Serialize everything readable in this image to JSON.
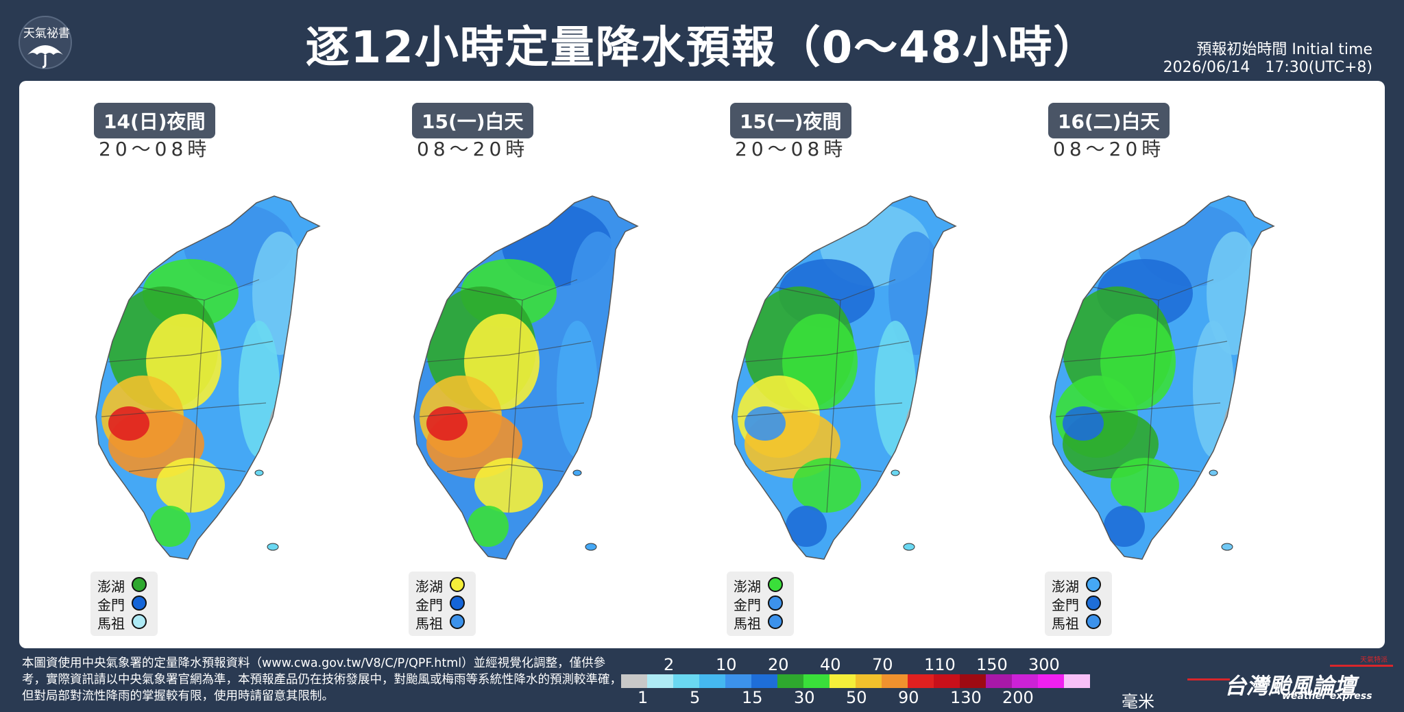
{
  "brand_logo": {
    "label": "天氣祕書",
    "icon": "umbrella-icon"
  },
  "title": "逐12小時定量降水預報（0～48小時）",
  "initial_time": {
    "label": "預報初始時間 Initial time",
    "value": "2026/06/14　17:30(UTC+8)"
  },
  "maps": [
    {
      "period": "14(日)夜間",
      "hours": "20～08時",
      "islands": [
        {
          "name": "澎湖",
          "color": "#2ea82e"
        },
        {
          "name": "金門",
          "color": "#1565d8"
        },
        {
          "name": "馬祖",
          "color": "#aeeaf5"
        }
      ],
      "colors": [
        "#45a8f5",
        "#3c92eb",
        "#70c8f5",
        "#3adf3a",
        "#2ea82e",
        "#f5ef3a",
        "#f2c12c",
        "#f0922e",
        "#e02020",
        "#6ad8f2",
        "#a8a8a8"
      ]
    },
    {
      "period": "15(一)白天",
      "hours": "08～20時",
      "islands": [
        {
          "name": "澎湖",
          "color": "#f5ef3a"
        },
        {
          "name": "金門",
          "color": "#1565d8"
        },
        {
          "name": "馬祖",
          "color": "#3c92eb"
        }
      ],
      "colors": [
        "#3c92eb",
        "#1e6ed8",
        "#3c92eb",
        "#3adf3a",
        "#2ea82e",
        "#f5ef3a",
        "#f2c12c",
        "#f0922e",
        "#e02020",
        "#45a8f5",
        "#45a8f5"
      ]
    },
    {
      "period": "15(一)夜間",
      "hours": "20～08時",
      "islands": [
        {
          "name": "澎湖",
          "color": "#3adf3a"
        },
        {
          "name": "金門",
          "color": "#3c92eb"
        },
        {
          "name": "馬祖",
          "color": "#3c92eb"
        }
      ],
      "colors": [
        "#45a8f5",
        "#70c8f5",
        "#3c92eb",
        "#1e6ed8",
        "#2ea82e",
        "#3adf3a",
        "#f5ef3a",
        "#f2c12c",
        "#3c92eb",
        "#6ad8f2",
        "#a8a8a8"
      ]
    },
    {
      "period": "16(二)白天",
      "hours": "08～20時",
      "islands": [
        {
          "name": "澎湖",
          "color": "#45a8f5"
        },
        {
          "name": "金門",
          "color": "#1e6ed8"
        },
        {
          "name": "馬祖",
          "color": "#3c92eb"
        }
      ],
      "colors": [
        "#45a8f5",
        "#3c92eb",
        "#70c8f5",
        "#1e6ed8",
        "#2ea82e",
        "#3adf3a",
        "#3adf3a",
        "#2ea82e",
        "#1e6ed8",
        "#70c8f5",
        "#a8a8a8"
      ]
    }
  ],
  "footer_note": "本圖資使用中央氣象署的定量降水預報資料（www.cwa.gov.tw/V8/C/P/QPF.html）並經視覺化調整，僅供參考，實際資訊請以中央氣象署官網為準，本預報產品仍在技術發展中，對颱風或梅雨等系統性降水的預測較準確，但對局部對流性降雨的掌握較有限，使用時請留意其限制。",
  "scale": {
    "upper_labels": [
      "2",
      "10",
      "20",
      "40",
      "70",
      "110",
      "150",
      "300"
    ],
    "lower_labels": [
      "1",
      "5",
      "15",
      "30",
      "50",
      "90",
      "130",
      "200"
    ],
    "colors": [
      "#c8c8c8",
      "#aeeaf5",
      "#6ad8f2",
      "#45b8f0",
      "#3c92eb",
      "#1e6ed8",
      "#2ea82e",
      "#3adf3a",
      "#f5ef3a",
      "#f2c12c",
      "#f0922e",
      "#e02020",
      "#c8101a",
      "#9e0a12",
      "#a818a8",
      "#cc22d6",
      "#f020f0",
      "#f8c0f8"
    ],
    "unit": "毫米"
  },
  "brand": {
    "name": "台灣颱風論壇",
    "sub": "weather express",
    "tag": "天氣特派"
  }
}
